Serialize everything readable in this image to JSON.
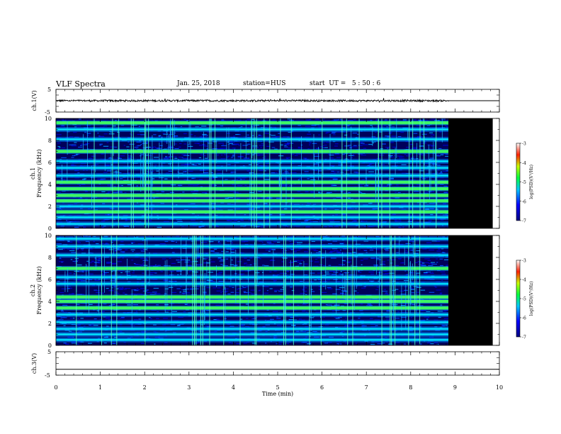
{
  "header": {
    "title": "VLF Spectra",
    "date": "Jan. 25, 2018",
    "station": "station=HUS",
    "start": "start  UT =   5 : 50 : 6"
  },
  "colors": {
    "spectro_low": "#000060",
    "spectro_mid": "#00c0ff",
    "spectro_band": "#40ff60",
    "no_data": "#000000",
    "frame": "#000000"
  },
  "chart_data": [
    {
      "type": "line",
      "ylabel": "ch.1(V)",
      "ylim": [
        -5,
        5
      ],
      "yticks": [
        "5",
        "-5"
      ],
      "xlim": [
        0,
        10
      ],
      "data_end_min": 8.85,
      "signal_description_values": {
        "mean": 0.0,
        "amplitude": 0.4
      }
    },
    {
      "type": "heatmap",
      "ylabel": "ch.1\nFrequency (kHz)",
      "ylabel_top": "ch.1",
      "ylabel_bottom": "Frequency (kHz)",
      "ylim": [
        0,
        10
      ],
      "yticks": [
        "0",
        "2",
        "4",
        "6",
        "8",
        "10"
      ],
      "xlim": [
        0,
        10
      ],
      "data_end_min": 8.85,
      "no_data_end_min": 9.85,
      "bands_khz": [
        0.4,
        1.0,
        1.5,
        2.0,
        2.5,
        3.0,
        3.6,
        4.2,
        4.8,
        5.5,
        6.1,
        7.0,
        8.1,
        9.0,
        9.6
      ],
      "bright_bands_khz": [
        1.5,
        2.5,
        3.0,
        3.6,
        4.2,
        7.0,
        9.6
      ],
      "colorbar": {
        "label": "log(PSD)(V²/Hz)",
        "range": [
          -7,
          -3
        ],
        "ticks": [
          "-3",
          "-4",
          "-5",
          "-6",
          "-7"
        ]
      }
    },
    {
      "type": "heatmap",
      "ylabel": "ch.2\nFrequency (kHz)",
      "ylabel_top": "ch.2",
      "ylabel_bottom": "Frequency (kHz)",
      "ylim": [
        0,
        10
      ],
      "yticks": [
        "0",
        "2",
        "4",
        "6",
        "8",
        "10"
      ],
      "xlim": [
        0,
        10
      ],
      "data_end_min": 8.85,
      "no_data_end_min": 9.85,
      "bands_khz": [
        0.5,
        1.0,
        1.5,
        2.1,
        2.8,
        3.4,
        4.0,
        4.4,
        5.6,
        6.2,
        7.0,
        8.2,
        9.0,
        9.7
      ],
      "bright_bands_khz": [
        3.4,
        4.0,
        4.4,
        7.0
      ],
      "colorbar": {
        "label": "log(PSD)(V²/Hz)",
        "range": [
          -7,
          -3
        ],
        "ticks": [
          "-3",
          "-4",
          "-5",
          "-6",
          "-7"
        ]
      }
    },
    {
      "type": "line",
      "ylabel": "ch.3(V)",
      "ylim": [
        -5,
        5
      ],
      "yticks": [
        "5",
        "-5"
      ],
      "xlim": [
        0,
        10
      ],
      "values_description": "flat line",
      "level": -2.5
    }
  ],
  "xaxis": {
    "label": "Time (min)",
    "ticks": [
      "0",
      "1",
      "2",
      "3",
      "4",
      "5",
      "6",
      "7",
      "8",
      "9",
      "10"
    ]
  }
}
